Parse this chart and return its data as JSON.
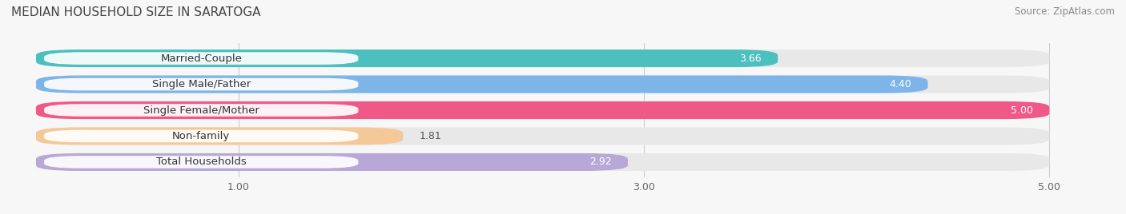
{
  "title": "MEDIAN HOUSEHOLD SIZE IN SARATOGA",
  "source": "Source: ZipAtlas.com",
  "categories": [
    "Married-Couple",
    "Single Male/Father",
    "Single Female/Mother",
    "Non-family",
    "Total Households"
  ],
  "values": [
    3.66,
    4.4,
    5.0,
    1.81,
    2.92
  ],
  "bar_colors": [
    "#4CBFBF",
    "#7EB5E8",
    "#F05888",
    "#F5C89A",
    "#B8A8D8"
  ],
  "bar_bg_color": "#EBEBEB",
  "xmin": 0.0,
  "xmax": 5.0,
  "xlim_left": -0.15,
  "xlim_right": 5.35,
  "xticks": [
    1.0,
    3.0,
    5.0
  ],
  "xtick_labels": [
    "1.00",
    "3.00",
    "5.00"
  ],
  "title_fontsize": 11,
  "source_fontsize": 8.5,
  "label_fontsize": 9.5,
  "value_fontsize": 9,
  "background_color": "#F7F7F7"
}
